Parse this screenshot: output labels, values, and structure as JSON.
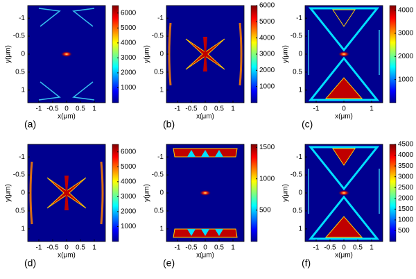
{
  "panels": [
    {
      "label": "(a)",
      "xlabel": "x(μm)",
      "ylabel": "y(μm)",
      "xlim": [
        -1.4,
        1.4
      ],
      "ylim": [
        -1.35,
        1.35
      ],
      "xticks": [
        -1,
        -0.5,
        0,
        0.5,
        1
      ],
      "yticks": [
        -1,
        -0.5,
        0,
        0.5,
        1
      ],
      "clim": [
        0,
        6500
      ],
      "colorbar_ticks": [
        1000,
        2000,
        3000,
        4000,
        5000,
        6000
      ]
    },
    {
      "label": "(b)",
      "xlabel": "x(μm)",
      "ylabel": "y(μm)",
      "xlim": [
        -1.4,
        1.4
      ],
      "ylim": [
        -1.35,
        1.35
      ],
      "xticks": [
        -1,
        -0.5,
        0,
        0.5,
        1
      ],
      "yticks": [
        -1,
        -0.5,
        0,
        0.5,
        1
      ],
      "clim": [
        0,
        6000
      ],
      "colorbar_ticks": [
        1000,
        2000,
        3000,
        4000,
        5000,
        6000
      ]
    },
    {
      "label": "(c)",
      "xlabel": "x(μm)",
      "ylabel": "y(μm)",
      "xlim": [
        -1.4,
        1.4
      ],
      "ylim": [
        -1.35,
        1.35
      ],
      "xticks": [
        -1,
        0,
        1
      ],
      "yticks": [
        -1,
        -0.5,
        0,
        0.5,
        1
      ],
      "clim": [
        0,
        4200
      ],
      "colorbar_ticks": [
        1000,
        2000,
        3000,
        4000
      ]
    },
    {
      "label": "(d)",
      "xlabel": "x(μm)",
      "ylabel": "y(μm)",
      "xlim": [
        -1.4,
        1.4
      ],
      "ylim": [
        -1.35,
        1.35
      ],
      "xticks": [
        -1,
        -0.5,
        0,
        0.5,
        1
      ],
      "yticks": [
        -1,
        -0.5,
        0,
        0.5,
        1
      ],
      "clim": [
        0,
        6500
      ],
      "colorbar_ticks": [
        1000,
        2000,
        3000,
        4000,
        5000,
        6000
      ]
    },
    {
      "label": "(e)",
      "xlabel": "x(μm)",
      "ylabel": "y(μm)",
      "xlim": [
        -1.4,
        1.4
      ],
      "ylim": [
        -1.35,
        1.35
      ],
      "xticks": [
        -1,
        -0.5,
        0,
        0.5,
        1
      ],
      "yticks": [
        -1,
        -0.5,
        0,
        0.5,
        1
      ],
      "clim": [
        0,
        1550
      ],
      "colorbar_ticks": [
        500,
        1000,
        1500
      ]
    },
    {
      "label": "(f)",
      "xlabel": "x(μm)",
      "ylabel": "y(μm)",
      "xlim": [
        -1.4,
        1.4
      ],
      "ylim": [
        -1.35,
        1.35
      ],
      "xticks": [
        -1,
        -0.5,
        0,
        0.5,
        1
      ],
      "yticks": [
        -1,
        -0.5,
        0,
        0.5,
        1
      ],
      "clim": [
        0,
        4500
      ],
      "colorbar_ticks": [
        500,
        1000,
        1500,
        2000,
        2500,
        3000,
        3500,
        4000,
        4500
      ]
    }
  ]
}
